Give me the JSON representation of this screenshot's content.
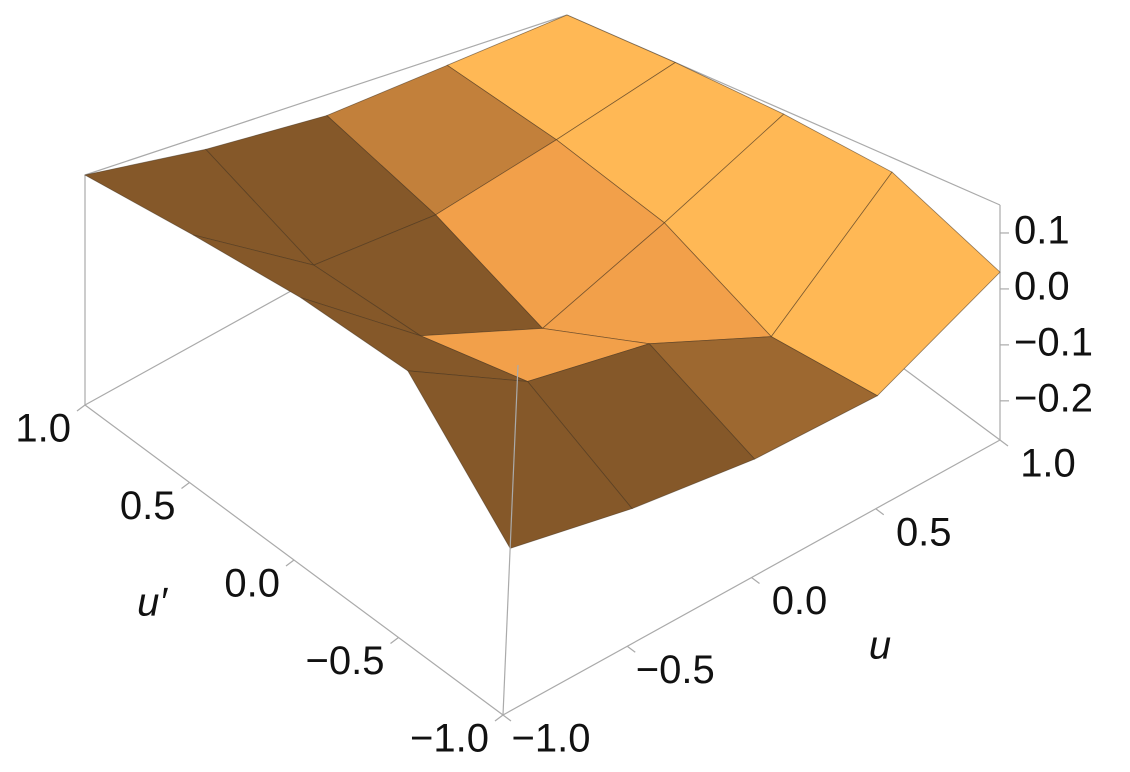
{
  "chart_data": {
    "type": "surface",
    "x_label": "u",
    "y_label": "u′",
    "x": [
      -1,
      -0.5,
      0,
      0.5,
      1
    ],
    "y": [
      -1,
      -0.5,
      0,
      0.5,
      1
    ],
    "z": [
      [
        -0.07,
        -0.09,
        -0.1,
        -0.09,
        0.03
      ],
      [
        0.08,
        0.0,
        -0.02,
        -0.1,
        0.12
      ],
      [
        0.11,
        -0.02,
        -0.1,
        0.0,
        0.14
      ],
      [
        0.13,
        0.0,
        0.0,
        0.06,
        0.15
      ],
      [
        0.15,
        0.12,
        0.1,
        0.12,
        0.15
      ]
    ],
    "color": "#f2a04a",
    "xlim": [
      -1,
      1
    ],
    "ylim": [
      -1,
      1
    ],
    "zlim": [
      -0.27,
      0.15
    ],
    "xticks": [
      {
        "value": -1,
        "label": "−1.0"
      },
      {
        "value": -0.5,
        "label": "−0.5"
      },
      {
        "value": 0,
        "label": "0.0"
      },
      0.5,
      {
        "value": 1,
        "label": "1.0"
      }
    ],
    "yticks": [
      {
        "value": -1,
        "label": "−1.0"
      },
      {
        "value": -0.5,
        "label": "−0.5"
      },
      {
        "value": 0,
        "label": "0.0"
      },
      0.5,
      {
        "value": 1,
        "label": "1.0"
      }
    ],
    "zticks": [
      {
        "value": -0.2,
        "label": "−0.2"
      },
      {
        "value": -0.1,
        "label": "−0.1"
      },
      {
        "value": 0,
        "label": "0.0"
      },
      0.1
    ]
  }
}
